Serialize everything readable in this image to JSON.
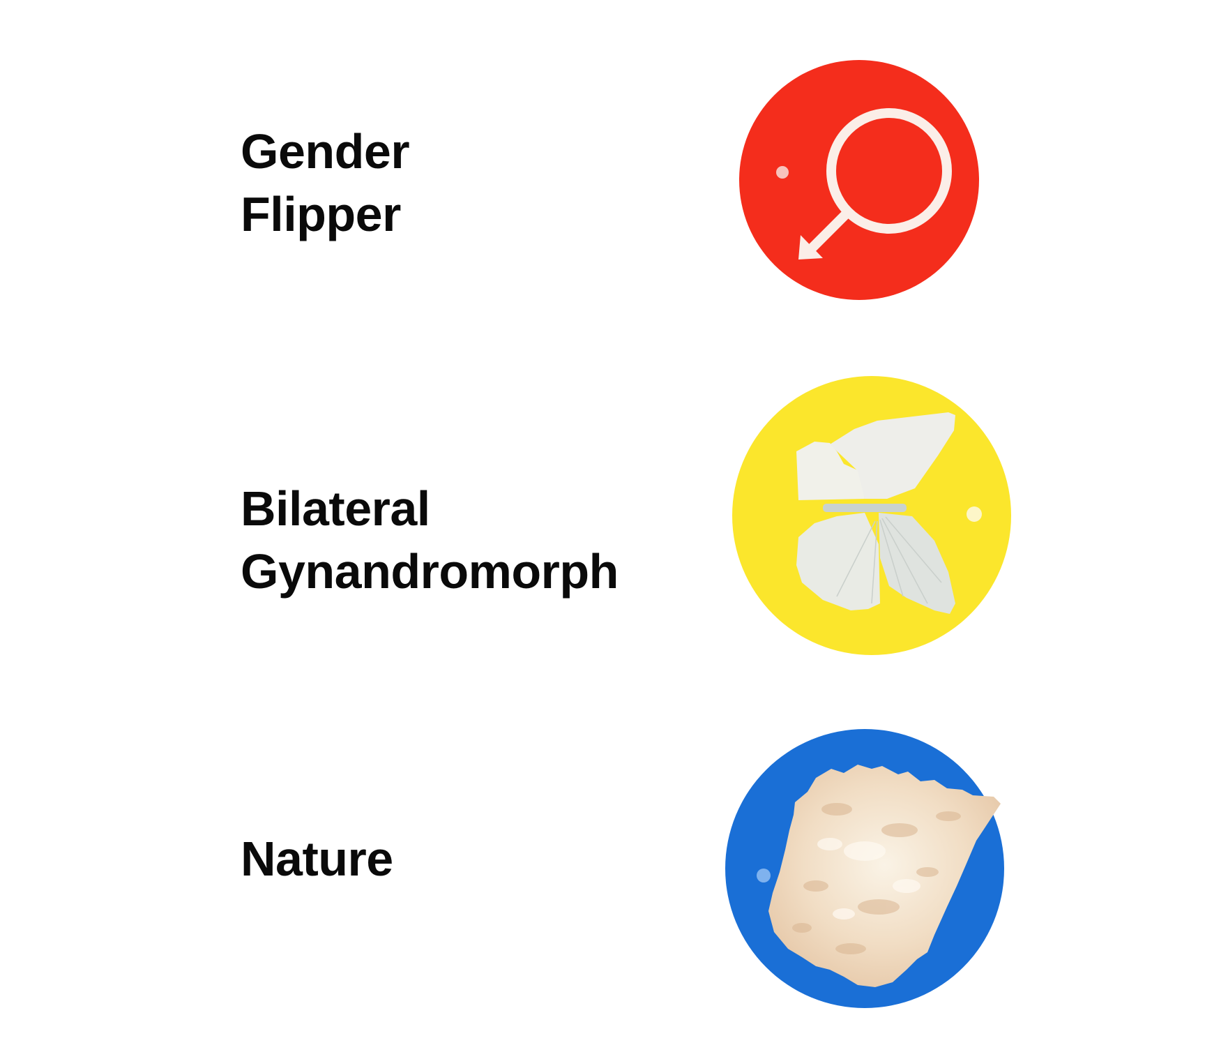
{
  "items": [
    {
      "label_lines": [
        "Gender",
        "Flipper"
      ],
      "disc_color": "#f42d1c",
      "icon": "gender-symbol-icon"
    },
    {
      "label_lines": [
        "Bilateral",
        "Gynandromorph"
      ],
      "disc_color": "#fbe62c",
      "icon": "butterfly-icon"
    },
    {
      "label_lines": [
        "Nature"
      ],
      "disc_color": "#1a6fd6",
      "icon": "natural-material-icon"
    }
  ]
}
